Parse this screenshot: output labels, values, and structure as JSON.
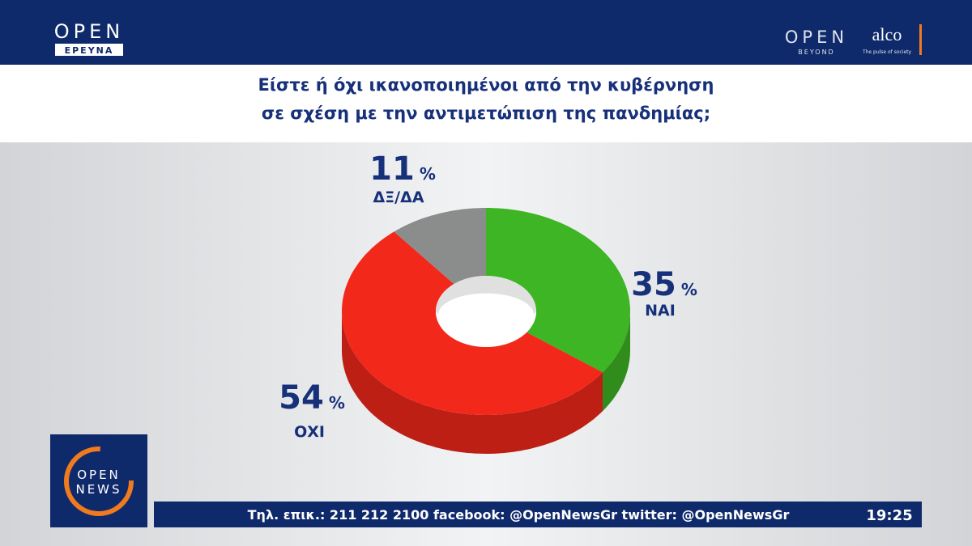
{
  "header": {
    "brand": "OPEN",
    "brand_sub": "ΕΡΕΥΝΑ",
    "partner1": "OPEN",
    "partner1_sub": "BEYOND",
    "partner2": "alco",
    "partner2_sub": "The pulse of society"
  },
  "chart_data": {
    "type": "pie",
    "title": [
      "Είστε ή όχι ικανοποιημένοι από την κυβέρνηση",
      "σε σχέση με την αντιμετώπιση της πανδημίας;"
    ],
    "categories": [
      "ΝΑΙ",
      "ΟΧΙ",
      "ΔΞ/ΔΑ"
    ],
    "values": [
      35,
      54,
      11
    ],
    "unit": "%",
    "colors": [
      "#3db524",
      "#f2281b",
      "#8b8d8d"
    ],
    "donut": true
  },
  "footer": {
    "logo_top": "OPEN",
    "logo_bottom": "NEWS",
    "ticker": "Τηλ. επικ.: 211 212 2100 facebook: @OpenNewsGr twitter: @OpenNewsGr",
    "time": "19:25"
  }
}
